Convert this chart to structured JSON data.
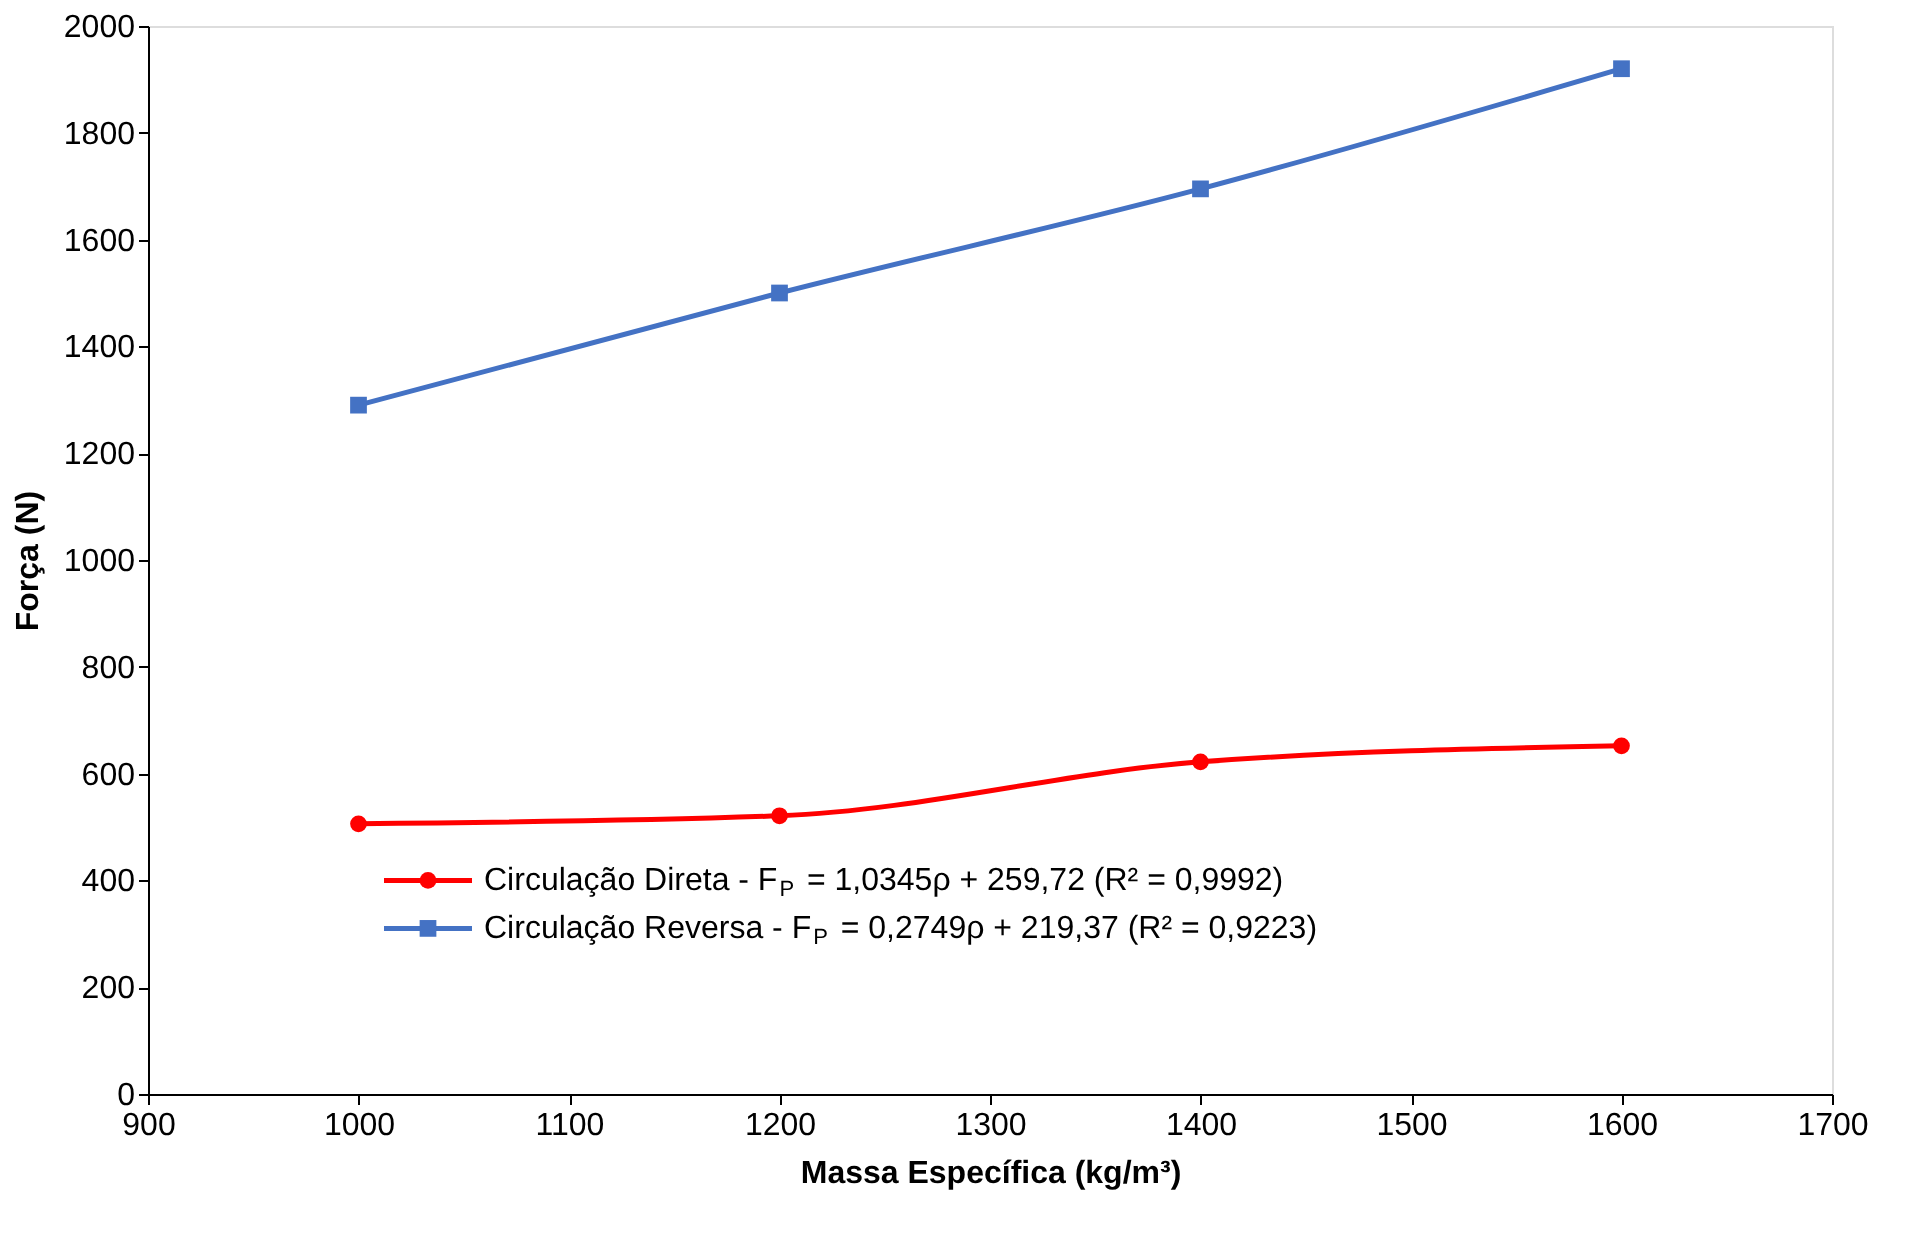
{
  "chart_data": {
    "type": "line",
    "xlabel": "Massa Específica (kg/m³)",
    "ylabel": "Força (N)",
    "x": [
      1000,
      1200,
      1400,
      1600
    ],
    "series": [
      {
        "name": "Circulação Direta  -  F$_{P}$ = 1,0345ρ + 259,72   (R² = 0,9992)",
        "color": "#ff0000",
        "marker": "circle",
        "values": [
          506,
          521,
          622,
          652
        ]
      },
      {
        "name": "Circulação Reversa  -  F$_{P}$ = 0,2749ρ + 219,37  (R² = 0,9223)",
        "color": "#4472c4",
        "marker": "square",
        "values": [
          1290,
          1500,
          1695,
          1920
        ]
      }
    ],
    "xlim": [
      900,
      1700
    ],
    "xticks": [
      900,
      1000,
      1100,
      1200,
      1300,
      1400,
      1500,
      1600,
      1700
    ],
    "ylim": [
      0,
      2000
    ],
    "yticks": [
      0,
      200,
      400,
      600,
      800,
      1000,
      1200,
      1400,
      1600,
      1800,
      2000
    ],
    "grid": false,
    "legend": "bottom",
    "line_style": "solid"
  }
}
